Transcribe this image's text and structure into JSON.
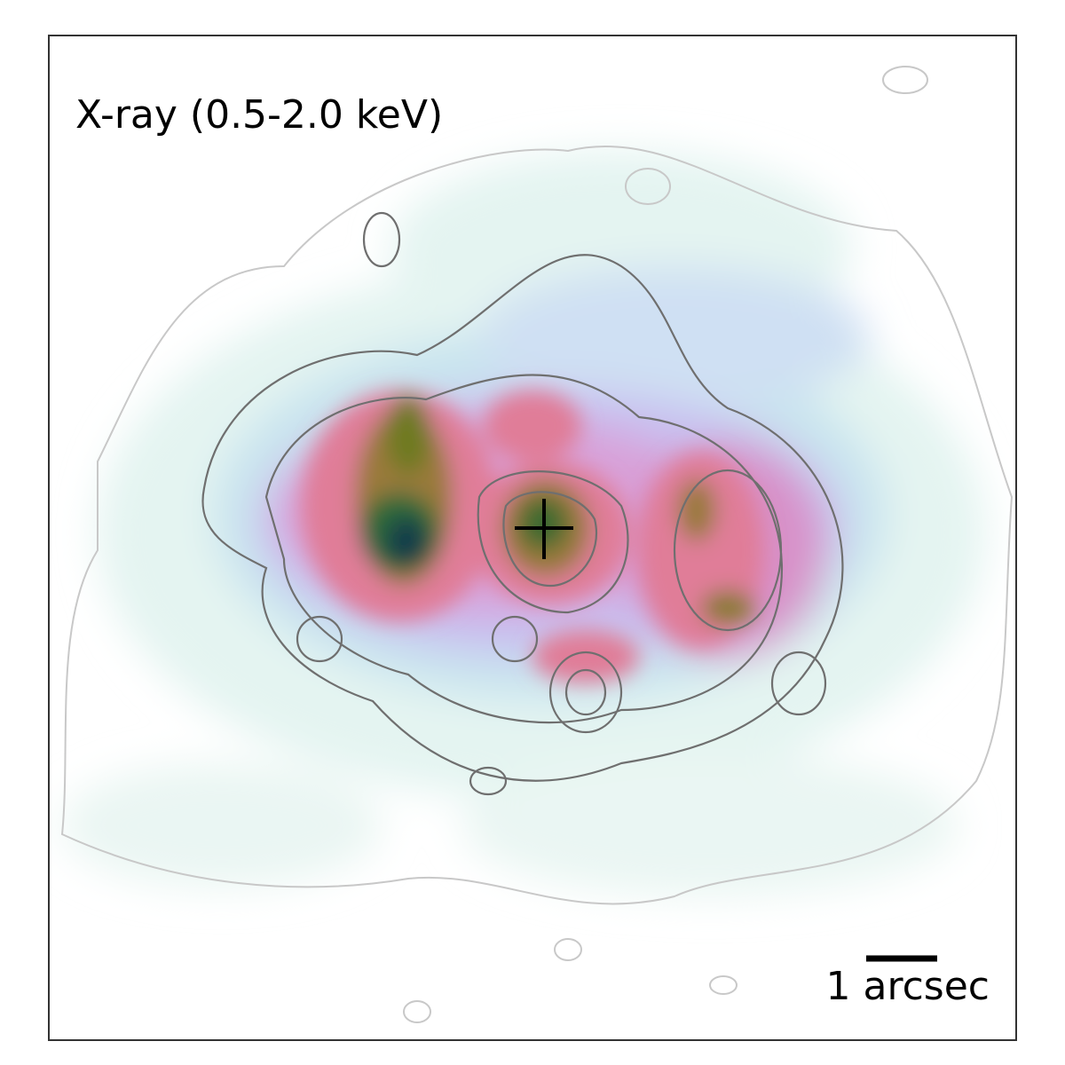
{
  "panel": {
    "label": "X-ray (0.5-2.0 keV)",
    "scale_bar": "1 arcsec"
  }
}
